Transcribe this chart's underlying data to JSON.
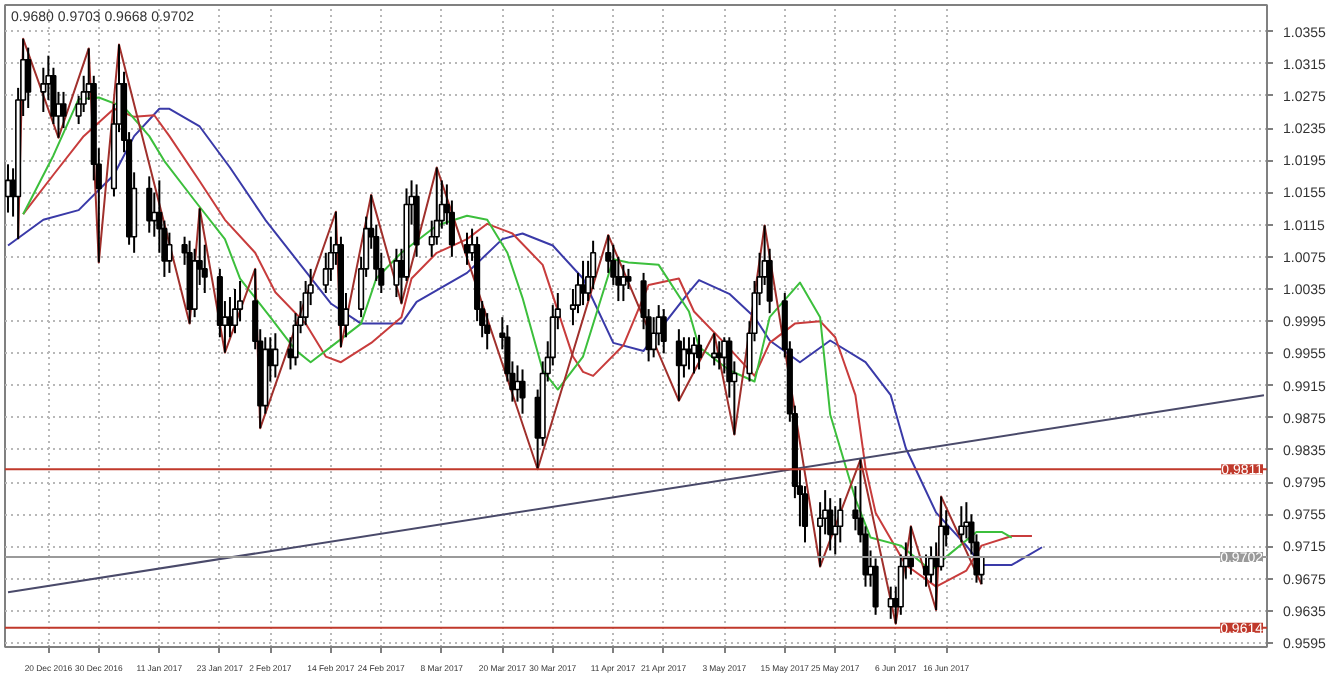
{
  "chart_data": {
    "type": "candlestick",
    "annotations": [
      "0.9680 0.9703 0.9668 0.9702"
    ],
    "x": [
      "2016-12-12",
      "2016-12-13",
      "2016-12-14",
      "2016-12-15",
      "2016-12-16",
      "2016-12-19",
      "2016-12-20",
      "2016-12-21",
      "2016-12-22",
      "2016-12-23",
      "2016-12-26",
      "2016-12-27",
      "2016-12-28",
      "2016-12-29",
      "2016-12-30",
      "2017-01-02",
      "2017-01-03",
      "2017-01-04",
      "2017-01-05",
      "2017-01-06",
      "2017-01-09",
      "2017-01-10",
      "2017-01-11",
      "2017-01-12",
      "2017-01-13",
      "2017-01-16",
      "2017-01-17",
      "2017-01-18",
      "2017-01-19",
      "2017-01-20",
      "2017-01-23",
      "2017-01-24",
      "2017-01-25",
      "2017-01-26",
      "2017-01-27",
      "2017-01-30",
      "2017-01-31",
      "2017-02-01",
      "2017-02-02",
      "2017-02-03",
      "2017-02-06",
      "2017-02-07",
      "2017-02-08",
      "2017-02-09",
      "2017-02-10",
      "2017-02-13",
      "2017-02-14",
      "2017-02-15",
      "2017-02-16",
      "2017-02-17",
      "2017-02-20",
      "2017-02-21",
      "2017-02-22",
      "2017-02-23",
      "2017-02-24",
      "2017-02-27",
      "2017-02-28",
      "2017-03-01",
      "2017-03-02",
      "2017-03-03",
      "2017-03-06",
      "2017-03-07",
      "2017-03-08",
      "2017-03-09",
      "2017-03-10",
      "2017-03-13",
      "2017-03-14",
      "2017-03-15",
      "2017-03-16",
      "2017-03-17",
      "2017-03-20",
      "2017-03-21",
      "2017-03-22",
      "2017-03-23",
      "2017-03-24",
      "2017-03-27",
      "2017-03-28",
      "2017-03-29",
      "2017-03-30",
      "2017-03-31",
      "2017-04-03",
      "2017-04-04",
      "2017-04-05",
      "2017-04-06",
      "2017-04-07",
      "2017-04-10",
      "2017-04-11",
      "2017-04-12",
      "2017-04-13",
      "2017-04-14",
      "2017-04-17",
      "2017-04-18",
      "2017-04-19",
      "2017-04-20",
      "2017-04-21",
      "2017-04-24",
      "2017-04-25",
      "2017-04-26",
      "2017-04-27",
      "2017-04-28",
      "2017-05-01",
      "2017-05-02",
      "2017-05-03",
      "2017-05-04",
      "2017-05-05",
      "2017-05-08",
      "2017-05-09",
      "2017-05-10",
      "2017-05-11",
      "2017-05-12",
      "2017-05-15",
      "2017-05-16",
      "2017-05-17",
      "2017-05-18",
      "2017-05-19",
      "2017-05-22",
      "2017-05-23",
      "2017-05-24",
      "2017-05-25",
      "2017-05-26",
      "2017-05-29",
      "2017-05-30",
      "2017-05-31",
      "2017-06-01",
      "2017-06-02",
      "2017-06-05",
      "2017-06-06",
      "2017-06-07",
      "2017-06-08",
      "2017-06-09",
      "2017-06-12",
      "2017-06-13",
      "2017-06-14",
      "2017-06-15",
      "2017-06-16",
      "2017-06-19",
      "2017-06-20",
      "2017-06-21",
      "2017-06-22",
      "2017-06-23"
    ],
    "ohlc": [
      [
        1.015,
        1.019,
        1.013,
        1.017
      ],
      [
        1.017,
        1.0185,
        1.0125,
        1.015
      ],
      [
        1.015,
        1.0285,
        1.0097,
        1.027
      ],
      [
        1.027,
        1.0346,
        1.025,
        1.032
      ],
      [
        1.032,
        1.0335,
        1.026,
        1.028
      ],
      [
        1.028,
        1.031,
        1.0255,
        1.029
      ],
      [
        1.029,
        1.0325,
        1.027,
        1.03
      ],
      [
        1.03,
        1.031,
        1.024,
        1.025
      ],
      [
        1.025,
        1.028,
        1.0223,
        1.0265
      ],
      [
        1.0265,
        1.028,
        1.0235,
        1.025
      ],
      [
        1.025,
        1.0275,
        1.024,
        1.0265
      ],
      [
        1.0265,
        1.03,
        1.0255,
        1.028
      ],
      [
        1.028,
        1.0334,
        1.027,
        1.029
      ],
      [
        1.029,
        1.03,
        1.017,
        1.019
      ],
      [
        1.019,
        1.021,
        1.0068,
        1.016
      ],
      [
        1.016,
        1.0265,
        1.015,
        1.024
      ],
      [
        1.024,
        1.0339,
        1.023,
        1.029
      ],
      [
        1.029,
        1.0305,
        1.0205,
        1.022
      ],
      [
        1.022,
        1.023,
        1.009,
        1.01
      ],
      [
        1.01,
        1.018,
        1.008,
        1.016
      ],
      [
        1.016,
        1.0175,
        1.0105,
        1.012
      ],
      [
        1.012,
        1.0155,
        1.01,
        1.013
      ],
      [
        1.013,
        1.017,
        1.008,
        1.011
      ],
      [
        1.011,
        1.012,
        1.005,
        1.007
      ],
      [
        1.007,
        1.0105,
        1.0055,
        1.009
      ],
      [
        1.009,
        1.01,
        1.0065,
        1.008
      ],
      [
        1.008,
        1.0095,
        0.9992,
        1.001
      ],
      [
        1.001,
        1.0085,
        1.0,
        1.007
      ],
      [
        1.007,
        1.0135,
        1.004,
        1.006
      ],
      [
        1.006,
        1.009,
        1.003,
        1.005
      ],
      [
        1.005,
        1.006,
        0.9975,
        0.999
      ],
      [
        0.999,
        1.002,
        0.9956,
        1.0
      ],
      [
        1.0,
        1.0025,
        0.9975,
        0.999
      ],
      [
        0.999,
        1.0035,
        0.998,
        1.001
      ],
      [
        1.001,
        1.0045,
        0.9995,
        1.002
      ],
      [
        1.002,
        1.006,
        0.996,
        0.997
      ],
      [
        0.997,
        0.9985,
        0.9862,
        0.989
      ],
      [
        0.989,
        0.9975,
        0.988,
        0.996
      ],
      [
        0.996,
        0.9975,
        0.992,
        0.994
      ],
      [
        0.994,
        0.998,
        0.9925,
        0.996
      ],
      [
        0.996,
        0.9975,
        0.9935,
        0.995
      ],
      [
        0.995,
        1.0005,
        0.994,
        0.999
      ],
      [
        0.999,
        1.002,
        0.998,
        1.0
      ],
      [
        1.0,
        1.0045,
        0.999,
        1.003
      ],
      [
        1.003,
        1.006,
        1.0015,
        1.004
      ],
      [
        1.004,
        1.008,
        1.003,
        1.006
      ],
      [
        1.006,
        1.01,
        1.0045,
        1.008
      ],
      [
        1.008,
        1.0131,
        1.0065,
        1.009
      ],
      [
        1.009,
        1.01,
        0.9963,
        0.999
      ],
      [
        0.999,
        1.003,
        0.9975,
        1.001
      ],
      [
        1.001,
        1.0075,
        1.0,
        1.006
      ],
      [
        1.006,
        1.0125,
        1.005,
        1.011
      ],
      [
        1.011,
        1.0152,
        1.0085,
        1.01
      ],
      [
        1.01,
        1.0115,
        1.0045,
        1.006
      ],
      [
        1.006,
        1.008,
        1.003,
        1.004
      ],
      [
        1.004,
        1.0085,
        1.0025,
        1.007
      ],
      [
        1.007,
        1.0085,
        1.0017,
        1.005
      ],
      [
        1.005,
        1.016,
        1.0045,
        1.014
      ],
      [
        1.014,
        1.017,
        1.0115,
        1.015
      ],
      [
        1.015,
        1.0165,
        1.0075,
        1.009
      ],
      [
        1.009,
        1.012,
        1.0075,
        1.01
      ],
      [
        1.01,
        1.0186,
        1.009,
        1.012
      ],
      [
        1.012,
        1.017,
        1.011,
        1.014
      ],
      [
        1.014,
        1.0165,
        1.0115,
        1.013
      ],
      [
        1.013,
        1.0145,
        1.0075,
        1.009
      ],
      [
        1.009,
        1.0105,
        1.0065,
        1.008
      ],
      [
        1.008,
        1.011,
        1.007,
        1.009
      ],
      [
        1.009,
        1.01,
        0.9995,
        1.001
      ],
      [
        1.001,
        1.002,
        0.9975,
        0.999
      ],
      [
        0.999,
        1.0005,
        0.996,
        0.998
      ],
      [
        0.998,
        1.0,
        0.996,
        0.9975
      ],
      [
        0.9975,
        0.999,
        0.992,
        0.993
      ],
      [
        0.993,
        0.9945,
        0.9895,
        0.991
      ],
      [
        0.991,
        0.994,
        0.9895,
        0.992
      ],
      [
        0.992,
        0.9935,
        0.988,
        0.99
      ],
      [
        0.99,
        0.991,
        0.9811,
        0.985
      ],
      [
        0.985,
        0.9945,
        0.984,
        0.993
      ],
      [
        0.993,
        0.997,
        0.992,
        0.995
      ],
      [
        0.995,
        1.0015,
        0.994,
        1.0
      ],
      [
        1.0,
        1.003,
        0.9985,
        1.001
      ],
      [
        1.001,
        1.0035,
        0.999,
        1.0015
      ],
      [
        1.0015,
        1.0055,
        1.0005,
        1.004
      ],
      [
        1.004,
        1.007,
        1.0015,
        1.003
      ],
      [
        1.003,
        1.007,
        1.002,
        1.005
      ],
      [
        1.005,
        1.0095,
        1.0035,
        1.008
      ],
      [
        1.008,
        1.0102,
        1.0055,
        1.007
      ],
      [
        1.007,
        1.009,
        1.004,
        1.005
      ],
      [
        1.005,
        1.0075,
        1.002,
        1.004
      ],
      [
        1.004,
        1.0065,
        1.002,
        1.005
      ],
      [
        1.005,
        1.006,
        1.0035,
        1.0045
      ],
      [
        1.0045,
        1.0055,
        0.9985,
        1.0
      ],
      [
        1.0,
        1.001,
        0.9945,
        0.996
      ],
      [
        0.996,
        1.0,
        0.995,
        0.998
      ],
      [
        0.998,
        1.0015,
        0.9965,
        1.0
      ],
      [
        1.0,
        1.001,
        0.9955,
        0.997
      ],
      [
        0.997,
        0.9985,
        0.9896,
        0.994
      ],
      [
        0.994,
        0.9975,
        0.9925,
        0.996
      ],
      [
        0.996,
        0.9975,
        0.9935,
        0.9955
      ],
      [
        0.9955,
        0.9975,
        0.993,
        0.9965
      ],
      [
        0.9965,
        0.9978,
        0.9935,
        0.995
      ],
      [
        0.995,
        0.998,
        0.994,
        0.9955
      ],
      [
        0.9955,
        0.997,
        0.9935,
        0.995
      ],
      [
        0.995,
        0.9975,
        0.993,
        0.997
      ],
      [
        0.997,
        0.9975,
        0.99,
        0.992
      ],
      [
        0.992,
        0.9945,
        0.9854,
        0.993
      ],
      [
        0.993,
        0.9995,
        0.992,
        0.998
      ],
      [
        0.998,
        1.0045,
        0.997,
        1.003
      ],
      [
        1.003,
        1.008,
        1.0015,
        1.005
      ],
      [
        1.005,
        1.0114,
        1.004,
        1.007
      ],
      [
        1.007,
        1.0085,
        1.0005,
        1.002
      ],
      [
        1.002,
        1.003,
        0.995,
        0.996
      ],
      [
        0.996,
        0.997,
        0.987,
        0.988
      ],
      [
        0.988,
        0.989,
        0.9775,
        0.979
      ],
      [
        0.979,
        0.981,
        0.974,
        0.978
      ],
      [
        0.978,
        0.979,
        0.972,
        0.974
      ],
      [
        0.974,
        0.977,
        0.969,
        0.975
      ],
      [
        0.975,
        0.9785,
        0.973,
        0.976
      ],
      [
        0.976,
        0.9775,
        0.971,
        0.973
      ],
      [
        0.973,
        0.9765,
        0.9705,
        0.974
      ],
      [
        0.974,
        0.9775,
        0.972,
        0.976
      ],
      [
        0.976,
        0.979,
        0.9735,
        0.975
      ],
      [
        0.975,
        0.9823,
        0.972,
        0.973
      ],
      [
        0.973,
        0.974,
        0.9665,
        0.968
      ],
      [
        0.968,
        0.971,
        0.9665,
        0.969
      ],
      [
        0.969,
        0.97,
        0.963,
        0.964
      ],
      [
        0.964,
        0.9665,
        0.9625,
        0.965
      ],
      [
        0.965,
        0.9665,
        0.9619,
        0.964
      ],
      [
        0.964,
        0.9705,
        0.963,
        0.969
      ],
      [
        0.969,
        0.972,
        0.9675,
        0.97
      ],
      [
        0.97,
        0.974,
        0.968,
        0.969
      ],
      [
        0.969,
        0.9705,
        0.9665,
        0.968
      ],
      [
        0.968,
        0.9715,
        0.967,
        0.97
      ],
      [
        0.97,
        0.972,
        0.9636,
        0.969
      ],
      [
        0.969,
        0.9777,
        0.9685,
        0.974
      ],
      [
        0.974,
        0.976,
        0.9715,
        0.973
      ],
      [
        0.973,
        0.9765,
        0.972,
        0.974
      ],
      [
        0.974,
        0.977,
        0.9725,
        0.9745
      ],
      [
        0.9745,
        0.9755,
        0.9705,
        0.972
      ],
      [
        0.972,
        0.973,
        0.967,
        0.968
      ],
      [
        0.968,
        0.9703,
        0.9668,
        0.9702
      ]
    ],
    "color": "#000000",
    "series": [
      {
        "type": "line",
        "color": "#3a3aa8",
        "x": [
          "2016-12-12",
          "2016-12-19",
          "2016-12-26",
          "2017-01-02",
          "2017-01-06",
          "2017-01-11",
          "2017-01-13",
          "2017-01-19",
          "2017-01-25",
          "2017-02-01",
          "2017-02-08",
          "2017-02-14",
          "2017-02-20",
          "2017-02-28",
          "2017-03-03",
          "2017-03-13",
          "2017-03-20",
          "2017-03-24",
          "2017-03-30",
          "2017-04-05",
          "2017-04-11",
          "2017-04-17",
          "2017-04-20",
          "2017-04-26",
          "2017-04-28",
          "2017-05-04",
          "2017-05-09",
          "2017-05-12",
          "2017-05-18",
          "2017-05-24",
          "2017-05-31",
          "2017-06-05",
          "2017-06-08",
          "2017-06-14",
          "2017-06-20",
          "2017-06-23",
          "2017-06-29",
          "2017-07-05"
        ],
        "values": [
          1.0089,
          1.0121,
          1.0133,
          1.0177,
          1.0225,
          1.0259,
          1.0259,
          1.0237,
          1.0186,
          1.0121,
          1.0065,
          1.0017,
          0.9992,
          0.9992,
          1.0019,
          1.0055,
          1.0097,
          1.0104,
          1.0089,
          1.0048,
          0.9968,
          0.9958,
          0.9983,
          1.0031,
          1.0046,
          1.0029,
          1.0,
          0.9971,
          0.9944,
          0.9971,
          0.9944,
          0.9903,
          0.9837,
          0.9757,
          0.9716,
          0.9692,
          0.9692,
          0.9714
        ]
      },
      {
        "type": "line",
        "color": "#c83c3c",
        "x": [
          "2016-12-15",
          "2016-12-21",
          "2016-12-27",
          "2017-01-02",
          "2017-01-06",
          "2017-01-10",
          "2017-01-13",
          "2017-01-19",
          "2017-01-24",
          "2017-01-30",
          "2017-02-03",
          "2017-02-09",
          "2017-02-13",
          "2017-02-16",
          "2017-02-22",
          "2017-02-28",
          "2017-03-02",
          "2017-03-07",
          "2017-03-13",
          "2017-03-17",
          "2017-03-22",
          "2017-03-28",
          "2017-04-03",
          "2017-04-05",
          "2017-04-07",
          "2017-04-13",
          "2017-04-18",
          "2017-04-24",
          "2017-04-27",
          "2017-05-03",
          "2017-05-09",
          "2017-05-12",
          "2017-05-17",
          "2017-05-22",
          "2017-05-25",
          "2017-05-29",
          "2017-05-31",
          "2017-06-02",
          "2017-06-08",
          "2017-06-14",
          "2017-06-20",
          "2017-06-23",
          "2017-06-29",
          "2017-07-03"
        ],
        "values": [
          1.0128,
          1.0177,
          1.0225,
          1.0259,
          1.0249,
          1.0251,
          1.0225,
          1.0169,
          1.0121,
          1.008,
          1.0031,
          0.9992,
          0.9951,
          0.9944,
          0.9968,
          1.0,
          1.0048,
          1.008,
          1.0097,
          1.0116,
          1.0104,
          1.0065,
          0.9951,
          0.9932,
          0.9927,
          0.9965,
          1.004,
          1.0048,
          1.0007,
          0.9968,
          0.9927,
          0.9968,
          0.9992,
          0.9995,
          0.9975,
          0.9903,
          0.9813,
          0.9757,
          0.9692,
          0.9665,
          0.9685,
          0.9716,
          0.9728,
          0.9728
        ]
      },
      {
        "type": "line",
        "color": "#3cbf3c",
        "x": [
          "2016-12-15",
          "2016-12-21",
          "2016-12-26",
          "2016-12-30",
          "2017-01-04",
          "2017-01-09",
          "2017-01-12",
          "2017-01-18",
          "2017-01-24",
          "2017-01-27",
          "2017-02-02",
          "2017-02-07",
          "2017-02-10",
          "2017-02-14",
          "2017-02-20",
          "2017-02-23",
          "2017-02-28",
          "2017-03-07",
          "2017-03-13",
          "2017-03-17",
          "2017-03-21",
          "2017-03-24",
          "2017-03-28",
          "2017-03-31",
          "2017-04-05",
          "2017-04-11",
          "2017-04-14",
          "2017-04-20",
          "2017-04-26",
          "2017-04-28",
          "2017-05-04",
          "2017-05-09",
          "2017-05-12",
          "2017-05-18",
          "2017-05-22",
          "2017-05-24",
          "2017-05-29",
          "2017-06-01",
          "2017-06-07",
          "2017-06-13",
          "2017-06-16",
          "2017-06-22",
          "2017-06-27",
          "2017-06-29"
        ],
        "values": [
          1.0128,
          1.0201,
          1.0271,
          1.0273,
          1.0261,
          1.0225,
          1.0194,
          1.0145,
          1.0097,
          1.0048,
          1.0,
          0.9959,
          0.9944,
          0.9963,
          0.9992,
          1.0048,
          1.008,
          1.0114,
          1.0126,
          1.0121,
          1.008,
          1.0024,
          0.9934,
          0.991,
          0.9951,
          1.0072,
          1.0068,
          1.0065,
          1.0007,
          0.9963,
          0.9934,
          0.992,
          1.0,
          1.0043,
          1.0,
          0.9879,
          0.9774,
          0.9726,
          0.9716,
          0.9685,
          0.9702,
          0.9733,
          0.9733,
          0.9726
        ]
      },
      {
        "type": "line",
        "color": "#a0302c",
        "x": [
          "2016-12-14",
          "2016-12-15",
          "2016-12-22",
          "2016-12-28",
          "2016-12-30",
          "2017-01-03",
          "2017-01-17",
          "2017-01-19",
          "2017-01-24",
          "2017-01-30",
          "2017-01-31",
          "2017-02-15",
          "2017-02-16",
          "2017-02-22",
          "2017-02-28",
          "2017-03-07",
          "2017-03-27",
          "2017-04-10",
          "2017-04-24",
          "2017-05-01",
          "2017-05-05",
          "2017-05-11",
          "2017-05-22",
          "2017-05-30",
          "2017-06-06",
          "2017-06-09",
          "2017-06-14",
          "2017-06-15",
          "2017-06-23"
        ],
        "values": [
          1.0097,
          1.0346,
          1.0223,
          1.0334,
          1.0068,
          1.0339,
          0.9992,
          1.0135,
          0.9956,
          1.006,
          0.9862,
          1.0131,
          0.9963,
          1.0152,
          1.0017,
          1.0186,
          0.9811,
          1.0102,
          0.9896,
          0.998,
          0.9854,
          1.0114,
          0.969,
          0.9823,
          0.9619,
          0.974,
          0.9636,
          0.9777,
          0.9668
        ]
      },
      {
        "type": "line",
        "color": "#4a4a6a",
        "x": [
          "2016-12-12",
          "2017-08-18"
        ],
        "values": [
          0.9658,
          0.9903
        ]
      }
    ],
    "ref_lines": [
      {
        "axis": "y",
        "value": 0.9811,
        "label": "0.9811",
        "color": "#c0392b"
      },
      {
        "axis": "y",
        "value": 0.9614,
        "label": "0.9614",
        "color": "#c0392b"
      },
      {
        "axis": "y",
        "value": 0.9702,
        "label": "0.9702",
        "color": "#9a9a9a"
      }
    ],
    "xlim": [
      "2016-12-12",
      "2017-08-18"
    ],
    "xticks": [
      {
        "value": "2016-12-20",
        "label": "20 Dec 2016"
      },
      {
        "value": "2016-12-30",
        "label": "30 Dec 2016"
      },
      {
        "value": "2017-01-11",
        "label": "11 Jan 2017"
      },
      {
        "value": "2017-01-23",
        "label": "23 Jan 2017"
      },
      {
        "value": "2017-02-02",
        "label": "2 Feb 2017"
      },
      {
        "value": "2017-02-14",
        "label": "14 Feb 2017"
      },
      {
        "value": "2017-02-24",
        "label": "24 Feb 2017"
      },
      {
        "value": "2017-03-08",
        "label": "8 Mar 2017"
      },
      {
        "value": "2017-03-20",
        "label": "20 Mar 2017"
      },
      {
        "value": "2017-03-30",
        "label": "30 Mar 2017"
      },
      {
        "value": "2017-04-11",
        "label": "11 Apr 2017"
      },
      {
        "value": "2017-04-21",
        "label": "21 Apr 2017"
      },
      {
        "value": "2017-05-03",
        "label": "3 May 2017"
      },
      {
        "value": "2017-05-15",
        "label": "15 May 2017"
      },
      {
        "value": "2017-05-25",
        "label": "25 May 2017"
      },
      {
        "value": "2017-06-06",
        "label": "6 Jun 2017"
      },
      {
        "value": "2017-06-16",
        "label": "16 Jun 2017"
      }
    ],
    "ylim": [
      0.959,
      1.0388
    ],
    "yticks": [
      0.9595,
      0.9635,
      0.9675,
      0.9715,
      0.9755,
      0.9795,
      0.9835,
      0.9875,
      0.9915,
      0.9955,
      0.9995,
      1.0035,
      1.0075,
      1.0115,
      1.0155,
      1.0195,
      1.0235,
      1.0275,
      1.0315,
      1.0355
    ],
    "grid": true
  }
}
